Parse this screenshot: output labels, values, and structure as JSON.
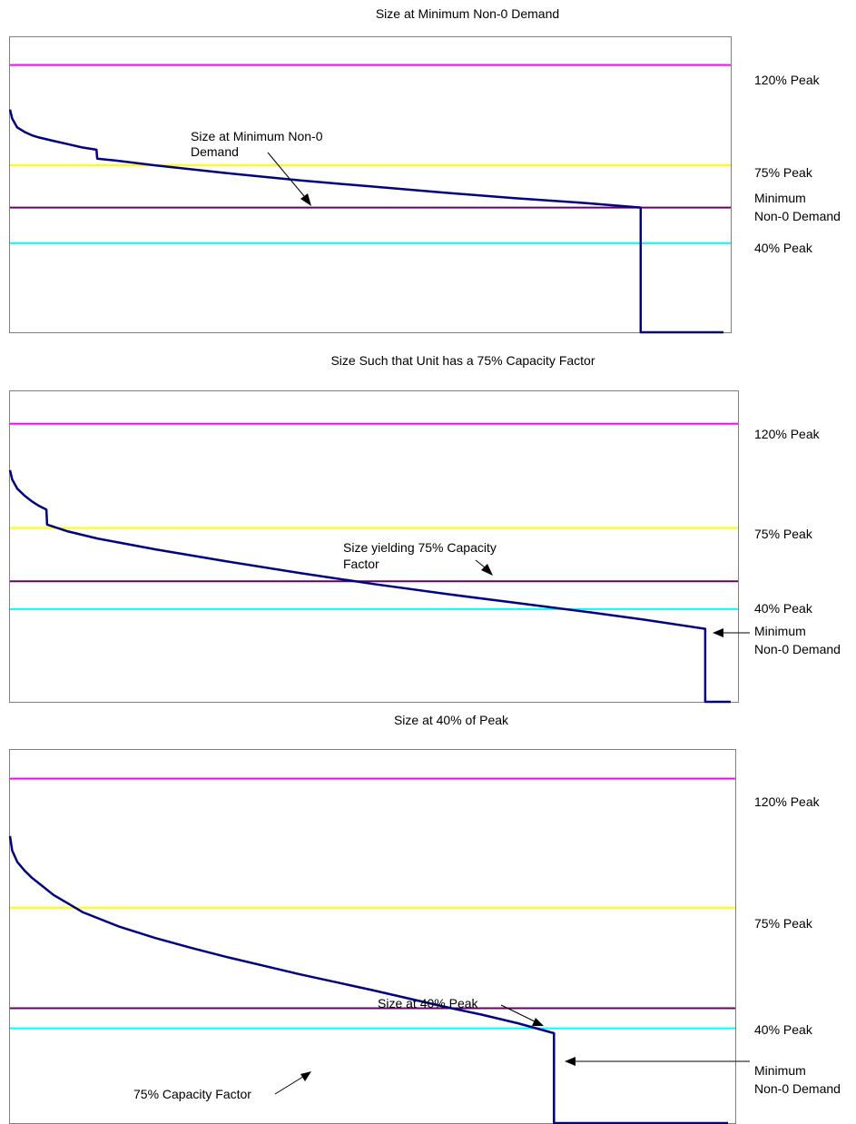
{
  "chart_data": [
    {
      "type": "line",
      "title": "Size at Minimum Non-0 Demand",
      "xlabel": "",
      "ylabel": "",
      "grid": false,
      "reference_lines": [
        {
          "label": "120% Peak",
          "value": 120,
          "color": "#ff00ff"
        },
        {
          "label": "75% Peak",
          "value": 75,
          "color": "#ffff00"
        },
        {
          "label": "Minimum Non-0 Demand",
          "value": 56,
          "color": "#660066"
        },
        {
          "label": "40% Peak",
          "value": 40,
          "color": "#00ffff"
        }
      ],
      "series": [
        {
          "color": "#000080",
          "x": [
            0,
            0.3,
            1,
            2,
            3,
            4,
            6,
            8,
            10,
            12,
            12.1,
            15,
            20,
            30,
            40,
            50,
            60,
            70,
            80,
            87.5,
            87.5,
            88.5,
            99
          ],
          "y": [
            100,
            96,
            92,
            90,
            88.5,
            87.5,
            86,
            84.5,
            83,
            82,
            78,
            77,
            75,
            71.5,
            68.3,
            65.5,
            62.8,
            60.2,
            58,
            56,
            0,
            0,
            0
          ]
        }
      ],
      "annotations": [
        {
          "text": "Size at Minimum Non-0 Demand"
        }
      ]
    },
    {
      "type": "line",
      "title": "Size Such that Unit has a 75% Capacity Factor",
      "xlabel": "",
      "ylabel": "",
      "grid": false,
      "reference_lines": [
        {
          "label": "120% Peak",
          "value": 120,
          "color": "#ff00ff"
        },
        {
          "label": "75% Peak",
          "value": 75,
          "color": "#ffff00"
        },
        {
          "label": "",
          "value": 52,
          "color": "#660066"
        },
        {
          "label": "40% Peak",
          "value": 40,
          "color": "#00ffff"
        }
      ],
      "series": [
        {
          "color": "#000080",
          "x": [
            0,
            0.3,
            1,
            2,
            3,
            4,
            5,
            5.1,
            8,
            12,
            20,
            30,
            40,
            50,
            60,
            70,
            80,
            87,
            95.5,
            95.5,
            96.5,
            99
          ],
          "y": [
            100,
            96,
            92,
            89,
            86.5,
            84.5,
            83,
            76.5,
            73.5,
            70.5,
            65.8,
            60.5,
            55.5,
            50.8,
            46.5,
            42.5,
            38.5,
            35.5,
            31.5,
            0,
            0,
            0
          ]
        }
      ],
      "annotations": [
        {
          "text": "Size yielding 75% Capacity Factor"
        },
        {
          "text": "Minimum Non-0 Demand"
        }
      ]
    },
    {
      "type": "line",
      "title": "Size at 40% of Peak",
      "xlabel": "",
      "ylabel": "",
      "grid": false,
      "reference_lines": [
        {
          "label": "120% Peak",
          "value": 120,
          "color": "#ff00ff"
        },
        {
          "label": "75% Peak",
          "value": 75,
          "color": "#ffff00"
        },
        {
          "label": "40% Peak",
          "value": 40,
          "color": "#660066"
        },
        {
          "label": "",
          "value": 33,
          "color": "#00ffff"
        }
      ],
      "series": [
        {
          "color": "#000080",
          "x": [
            0,
            0.3,
            1,
            2,
            3,
            4,
            6,
            8,
            10,
            15,
            20,
            25,
            30,
            40,
            50,
            60,
            65,
            70,
            75,
            75,
            76,
            99
          ],
          "y": [
            100,
            95,
            91,
            88,
            85.5,
            83.5,
            79.5,
            76.5,
            73.5,
            68.5,
            64.5,
            61,
            57.8,
            51.8,
            46.3,
            40.5,
            37.8,
            34.8,
            31.3,
            0,
            0,
            0
          ]
        }
      ],
      "annotations": [
        {
          "text": "Size at 40% Peak"
        },
        {
          "text": "Minimum Non-0 Demand"
        },
        {
          "text": "75% Capacity Factor"
        }
      ]
    }
  ]
}
